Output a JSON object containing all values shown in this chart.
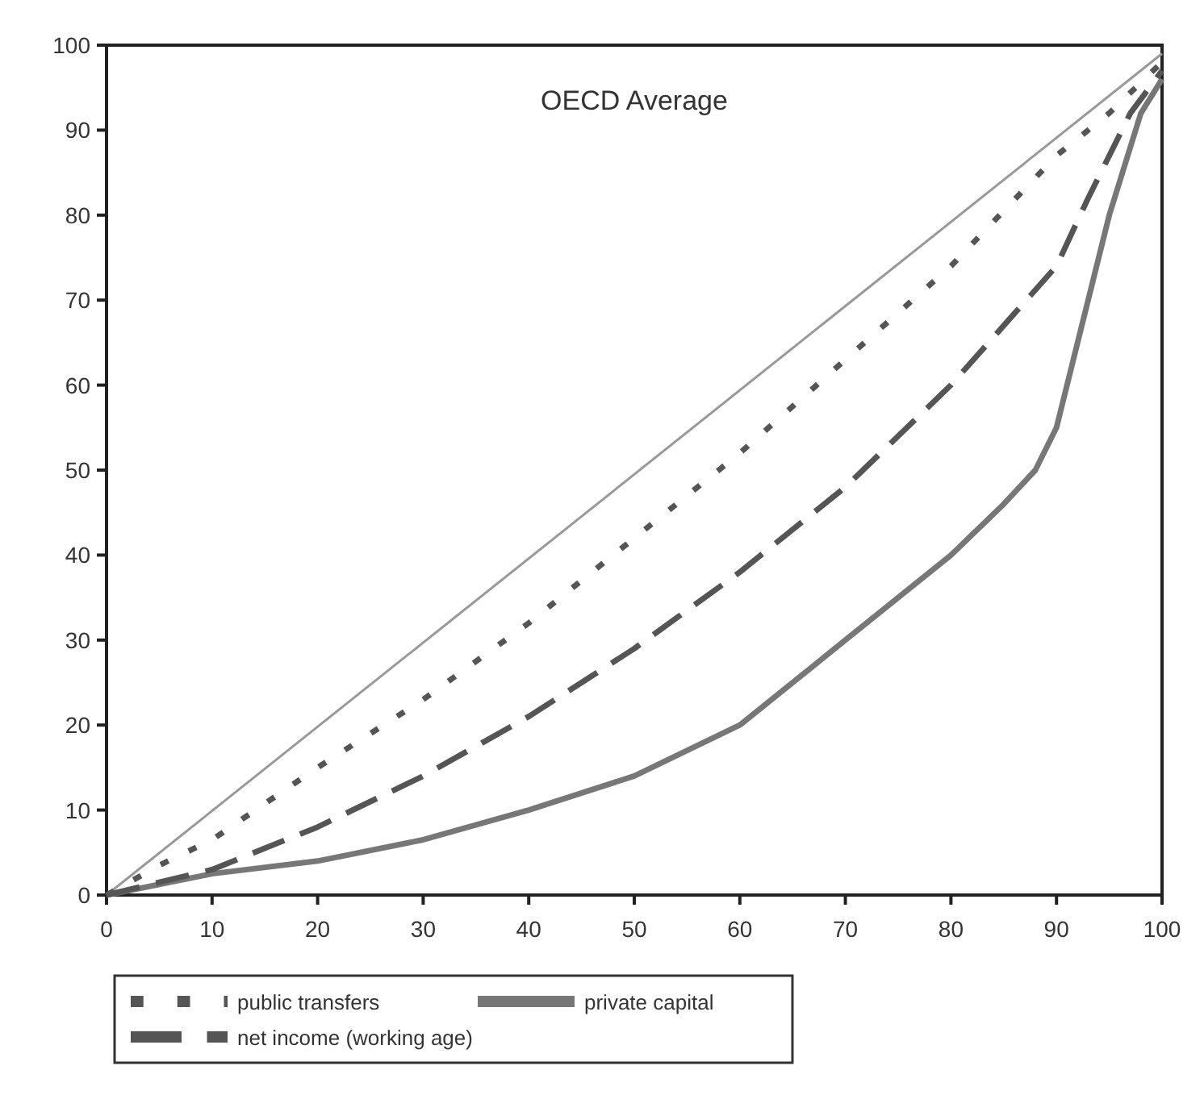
{
  "chart_data": {
    "type": "line",
    "title": "OECD Average",
    "xlim": [
      0,
      100
    ],
    "ylim": [
      0,
      100
    ],
    "xticks": [
      0,
      10,
      20,
      30,
      40,
      50,
      60,
      70,
      80,
      90,
      100
    ],
    "yticks": [
      0,
      10,
      20,
      30,
      40,
      50,
      60,
      70,
      80,
      90,
      100
    ],
    "grid": false,
    "legend": "bottom",
    "marker": "none",
    "series": [
      {
        "color": "#999999",
        "line_style": "solid",
        "x": [
          0,
          100
        ],
        "values": [
          0,
          99
        ]
      },
      {
        "name": "public transfers",
        "color": "#555555",
        "line_style": "dotted",
        "x": [
          0,
          5,
          10,
          20,
          30,
          40,
          50,
          60,
          70,
          80,
          90,
          95,
          100
        ],
        "values": [
          0,
          3.5,
          6.5,
          15,
          23,
          32,
          42,
          52,
          63,
          74,
          87,
          92,
          98
        ]
      },
      {
        "name": "private capital",
        "color": "#777777",
        "line_style": "solid",
        "x": [
          0,
          10,
          20,
          30,
          40,
          50,
          60,
          70,
          80,
          85,
          88,
          90,
          92,
          95,
          98,
          100
        ],
        "values": [
          0,
          2.5,
          4,
          6.5,
          10,
          14,
          20,
          30,
          40,
          46,
          50,
          55,
          65,
          80,
          92,
          96
        ]
      },
      {
        "name": "net income (working age)",
        "color": "#555555",
        "line_style": "dashed",
        "x": [
          0,
          10,
          20,
          30,
          40,
          50,
          60,
          70,
          80,
          90,
          93,
          97,
          100
        ],
        "values": [
          0,
          3,
          8,
          14,
          21,
          29,
          38,
          48,
          60,
          74,
          82,
          92,
          97
        ]
      }
    ]
  }
}
